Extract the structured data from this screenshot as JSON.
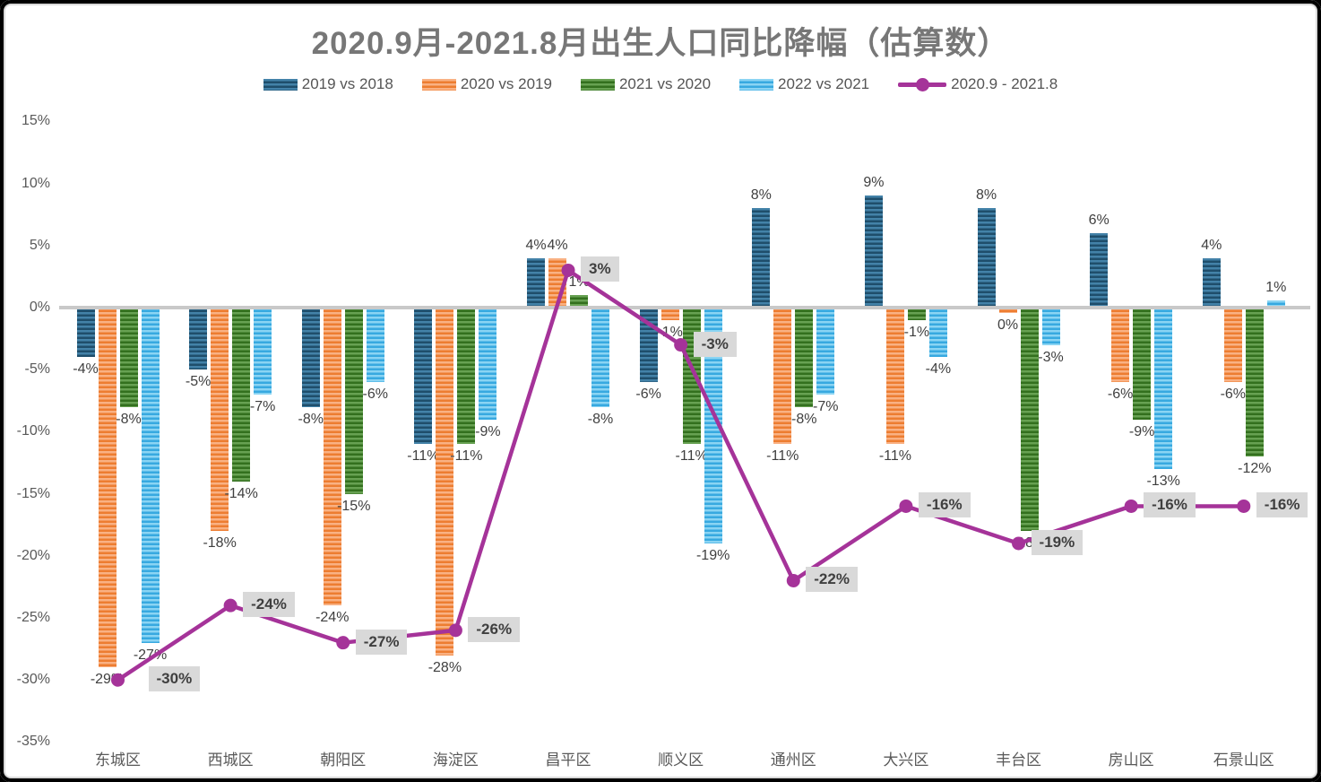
{
  "title": "2020.9月-2021.8月出生人口同比降幅（估算数）",
  "chart_data": {
    "type": "bar",
    "subtype": "grouped-bars-with-line-overlay",
    "title": "2020.9月-2021.8月出生人口同比降幅（估算数）",
    "categories": [
      "东城区",
      "西城区",
      "朝阳区",
      "海淀区",
      "昌平区",
      "顺义区",
      "通州区",
      "大兴区",
      "丰台区",
      "房山区",
      "石景山区"
    ],
    "bar_series": [
      {
        "name": "2019 vs 2018",
        "values": [
          -4,
          -5,
          -8,
          -11,
          4,
          -6,
          8,
          9,
          8,
          6,
          4
        ],
        "labels": [
          "-4%",
          "-5%",
          "-8%",
          "-11%",
          "4%",
          "-6%",
          "8%",
          "9%",
          "8%",
          "6%",
          "4%"
        ],
        "color_dark": "#1F4E6B",
        "color_light": "#4382A8"
      },
      {
        "name": "2020 vs 2019",
        "values": [
          -29,
          -18,
          -24,
          -28,
          4,
          -1,
          -11,
          -11,
          -0.4,
          -6,
          -6
        ],
        "labels": [
          "-29%",
          "-18%",
          "-24%",
          "-28%",
          "4%",
          "-1%",
          "-11%",
          "-11%",
          "0%",
          "-6%",
          "-6%"
        ],
        "color_dark": "#ED7D31",
        "color_light": "#F9B183"
      },
      {
        "name": "2021 vs 2020",
        "values": [
          -8,
          -14,
          -15,
          -11,
          1,
          -11,
          -8,
          -1,
          -18,
          -9,
          -12
        ],
        "labels": [
          "-8%",
          "-14%",
          "-15%",
          "-11%",
          "1%",
          "-11%",
          "-8%",
          "-1%",
          "-18%",
          "-9%",
          "-12%"
        ],
        "color_dark": "#33701E",
        "color_light": "#67A152"
      },
      {
        "name": "2022 vs 2021",
        "values": [
          -27,
          -7,
          -6,
          -9,
          -8,
          -19,
          -7,
          -4,
          -3,
          -13,
          0.6
        ],
        "labels": [
          "-27%",
          "-7%",
          "-6%",
          "-9%",
          "-8%",
          "-19%",
          "-7%",
          "-4%",
          "-3%",
          "-13%",
          "1%"
        ],
        "color_dark": "#37A9E0",
        "color_light": "#8AD4F3"
      }
    ],
    "line_series": {
      "name": "2020.9 - 2021.8",
      "values": [
        -30,
        -24,
        -27,
        -26,
        3,
        -3,
        -22,
        -16,
        -19,
        -16,
        -16
      ],
      "labels": [
        "-30%",
        "-24%",
        "-27%",
        "-26%",
        "3%",
        "-3%",
        "-22%",
        "-16%",
        "-19%",
        "-16%",
        "-16%"
      ],
      "color": "#A53399",
      "label_bg": "#D9D9D9",
      "label_color": "#3F3F3F"
    },
    "y_axis": {
      "max": 15,
      "min": -35,
      "step": 5,
      "ticks": [
        "15%",
        "10%",
        "5%",
        "0%",
        "-5%",
        "-10%",
        "-15%",
        "-20%",
        "-25%",
        "-30%",
        "-35%"
      ]
    },
    "grid": false,
    "legend_position": "top"
  },
  "colors": {
    "title_text": "#777777",
    "axis_text": "#595959",
    "bar_label_text": "#3F3F3F",
    "zero_line": "#C9C9C9",
    "frame_border": "#000000",
    "background": "#FFFFFF"
  }
}
